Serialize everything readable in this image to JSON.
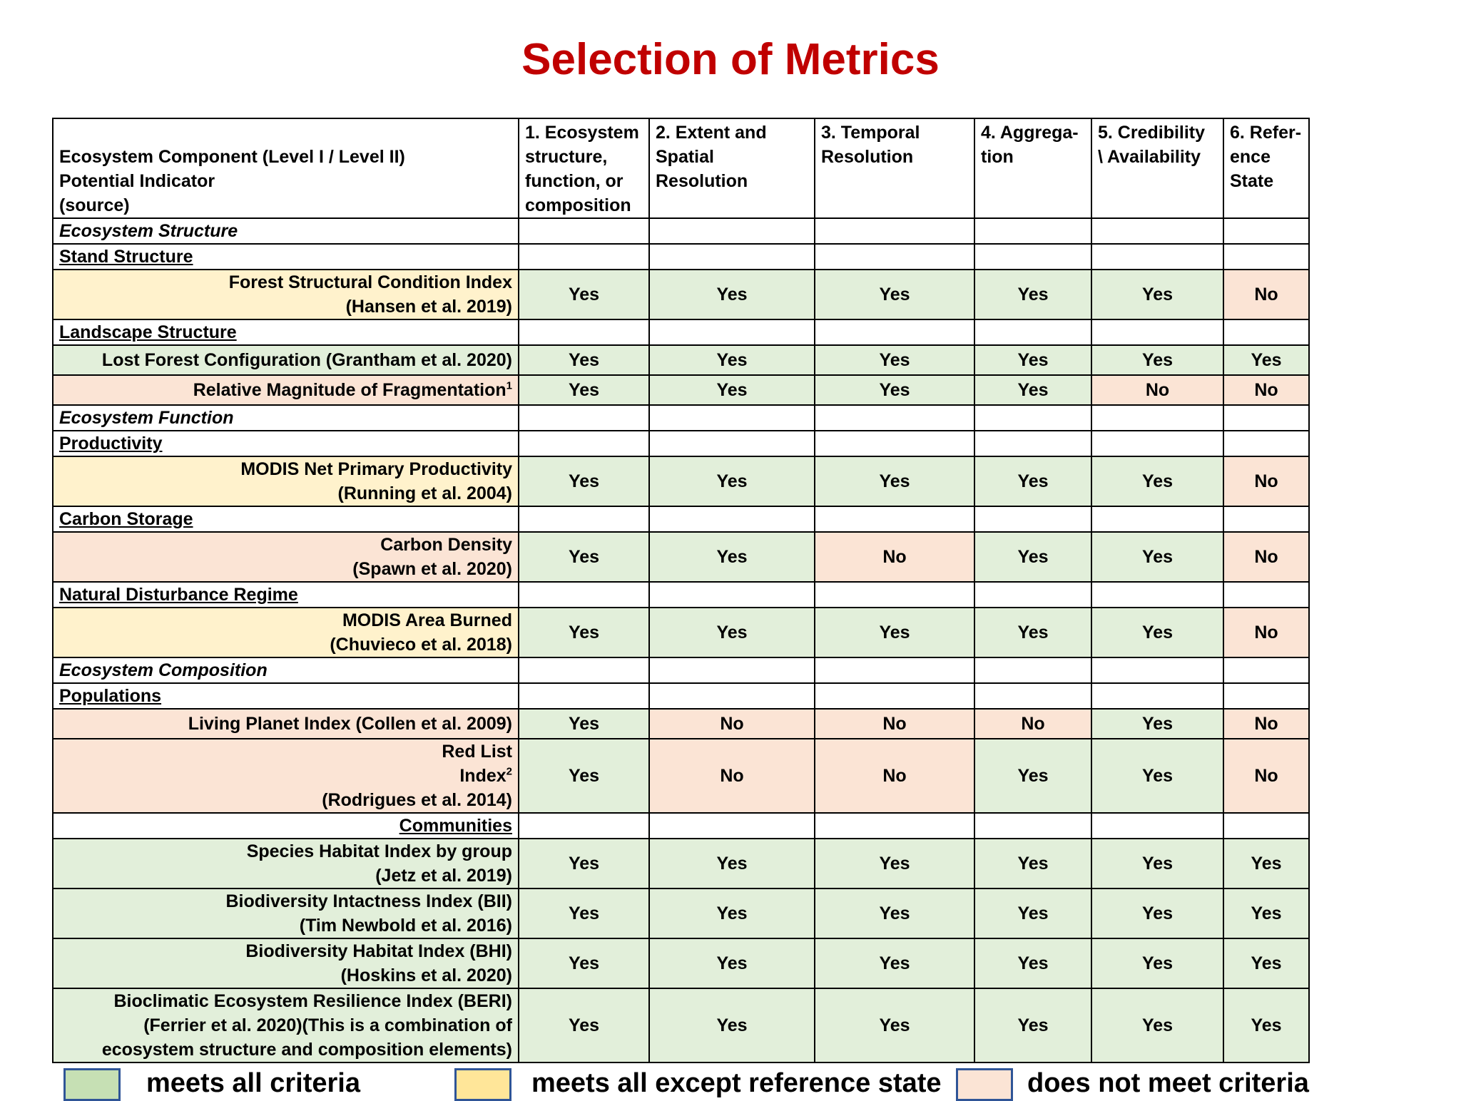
{
  "title": "Selection of Metrics",
  "colors": {
    "title": "#c00000",
    "green": "#e2efda",
    "yellow": "#fff2cc",
    "pink": "#fbe4d5",
    "legend_green": "#c6e0b4",
    "legend_yellow": "#ffe699",
    "legend_pink": "#fbe4d5"
  },
  "header": {
    "first_col": [
      "Ecosystem Component (Level I / Level II)",
      "Potential Indicator",
      "(source)"
    ],
    "cols": [
      [
        "1. Ecosystem",
        "structure,",
        "function, or",
        "composition"
      ],
      [
        "2. Extent and",
        "Spatial",
        "Resolution"
      ],
      [
        "3. Temporal",
        "Resolution"
      ],
      [
        "4. Aggrega-",
        "tion"
      ],
      [
        "5. Credibility",
        "\\ Availability"
      ],
      [
        "6. Refer-",
        "ence",
        "State"
      ]
    ]
  },
  "rows": [
    {
      "type": "section",
      "label": "Ecosystem Structure"
    },
    {
      "type": "sub",
      "label": "Stand Structure"
    },
    {
      "type": "data",
      "lines": [
        "Forest Structural Condition Index",
        "(Hansen et al. 2019)"
      ],
      "color": "yellow",
      "values": [
        "Yes",
        "Yes",
        "Yes",
        "Yes",
        "Yes",
        "No"
      ]
    },
    {
      "type": "sub",
      "label": "Landscape Structure"
    },
    {
      "type": "data",
      "lines": [
        "Lost Forest Configuration (Grantham et al. 2020)"
      ],
      "color": "green",
      "values": [
        "Yes",
        "Yes",
        "Yes",
        "Yes",
        "Yes",
        "Yes"
      ]
    },
    {
      "type": "data",
      "lines": [
        "Relative Magnitude of Fragmentation"
      ],
      "sup": "1",
      "color": "pink",
      "values": [
        "Yes",
        "Yes",
        "Yes",
        "Yes",
        "No",
        "No"
      ]
    },
    {
      "type": "section",
      "label": "Ecosystem Function"
    },
    {
      "type": "sub",
      "label": "Productivity"
    },
    {
      "type": "data",
      "lines": [
        "MODIS Net Primary Productivity",
        "(Running et al. 2004)"
      ],
      "color": "yellow",
      "values": [
        "Yes",
        "Yes",
        "Yes",
        "Yes",
        "Yes",
        "No"
      ]
    },
    {
      "type": "sub",
      "label": "Carbon Storage"
    },
    {
      "type": "data",
      "lines": [
        "Carbon Density",
        "(Spawn et al. 2020)"
      ],
      "color": "pink",
      "values": [
        "Yes",
        "Yes",
        "No",
        "Yes",
        "Yes",
        "No"
      ]
    },
    {
      "type": "sub",
      "label": "Natural Disturbance Regime"
    },
    {
      "type": "data",
      "lines": [
        "MODIS Area Burned",
        "(Chuvieco et al. 2018)"
      ],
      "color": "yellow",
      "values": [
        "Yes",
        "Yes",
        "Yes",
        "Yes",
        "Yes",
        "No"
      ]
    },
    {
      "type": "section",
      "label": "Ecosystem Composition"
    },
    {
      "type": "sub",
      "label": "Populations"
    },
    {
      "type": "data",
      "lines": [
        "Living Planet Index (Collen et al. 2009)"
      ],
      "color": "pink",
      "values": [
        "Yes",
        "No",
        "No",
        "No",
        "Yes",
        "No"
      ]
    },
    {
      "type": "data",
      "lines": [
        "Red List",
        "Index",
        "(Rodrigues et al. 2014)"
      ],
      "sup_line": 1,
      "sup": "2",
      "color": "pink",
      "values": [
        "Yes",
        "No",
        "No",
        "Yes",
        "Yes",
        "No"
      ]
    },
    {
      "type": "sub-right",
      "label": "Communities"
    },
    {
      "type": "data",
      "lines": [
        "Species Habitat Index by group",
        "(Jetz et al. 2019)"
      ],
      "color": "green",
      "values": [
        "Yes",
        "Yes",
        "Yes",
        "Yes",
        "Yes",
        "Yes"
      ]
    },
    {
      "type": "data",
      "lines": [
        "Biodiversity Intactness Index (BII)",
        "(Tim Newbold et al. 2016)"
      ],
      "color": "green",
      "values": [
        "Yes",
        "Yes",
        "Yes",
        "Yes",
        "Yes",
        "Yes"
      ]
    },
    {
      "type": "data",
      "lines": [
        "Biodiversity Habitat Index (BHI)",
        "(Hoskins et al. 2020)"
      ],
      "color": "green",
      "values": [
        "Yes",
        "Yes",
        "Yes",
        "Yes",
        "Yes",
        "Yes"
      ]
    },
    {
      "type": "data",
      "lines": [
        "Bioclimatic Ecosystem Resilience Index (BERI)",
        "(Ferrier et al. 2020)(This is a combination of",
        "ecosystem structure and composition elements)"
      ],
      "color": "green",
      "values": [
        "Yes",
        "Yes",
        "Yes",
        "Yes",
        "Yes",
        "Yes"
      ]
    }
  ],
  "legend": [
    {
      "label": "meets all criteria",
      "color": "#c6e0b4"
    },
    {
      "label": "meets all except reference state",
      "color": "#ffe699"
    },
    {
      "label": "does not meet criteria",
      "color": "#fbe4d5"
    }
  ]
}
